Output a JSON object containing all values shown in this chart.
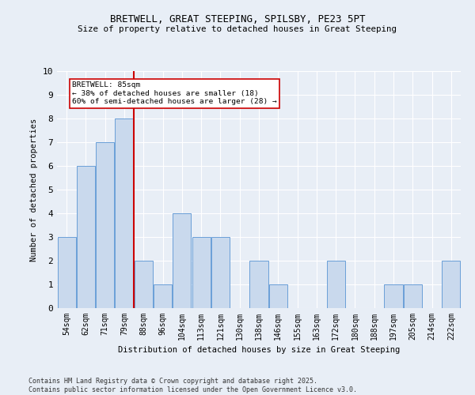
{
  "title_line1": "BRETWELL, GREAT STEEPING, SPILSBY, PE23 5PT",
  "title_line2": "Size of property relative to detached houses in Great Steeping",
  "xlabel": "Distribution of detached houses by size in Great Steeping",
  "ylabel": "Number of detached properties",
  "categories": [
    "54sqm",
    "62sqm",
    "71sqm",
    "79sqm",
    "88sqm",
    "96sqm",
    "104sqm",
    "113sqm",
    "121sqm",
    "130sqm",
    "138sqm",
    "146sqm",
    "155sqm",
    "163sqm",
    "172sqm",
    "180sqm",
    "188sqm",
    "197sqm",
    "205sqm",
    "214sqm",
    "222sqm"
  ],
  "values": [
    3,
    6,
    7,
    8,
    2,
    1,
    4,
    3,
    3,
    0,
    2,
    1,
    0,
    0,
    2,
    0,
    0,
    1,
    1,
    0,
    2
  ],
  "bar_color": "#c9d9ed",
  "bar_edge_color": "#6a9fd8",
  "vline_x": 3.5,
  "vline_color": "#cc0000",
  "annotation_text": "BRETWELL: 85sqm\n← 38% of detached houses are smaller (18)\n60% of semi-detached houses are larger (28) →",
  "annotation_box_color": "#ffffff",
  "annotation_box_edge": "#cc0000",
  "ylim": [
    0,
    10
  ],
  "yticks": [
    0,
    1,
    2,
    3,
    4,
    5,
    6,
    7,
    8,
    9,
    10
  ],
  "background_color": "#e8eef6",
  "grid_color": "#ffffff",
  "footer_line1": "Contains HM Land Registry data © Crown copyright and database right 2025.",
  "footer_line2": "Contains public sector information licensed under the Open Government Licence v3.0."
}
